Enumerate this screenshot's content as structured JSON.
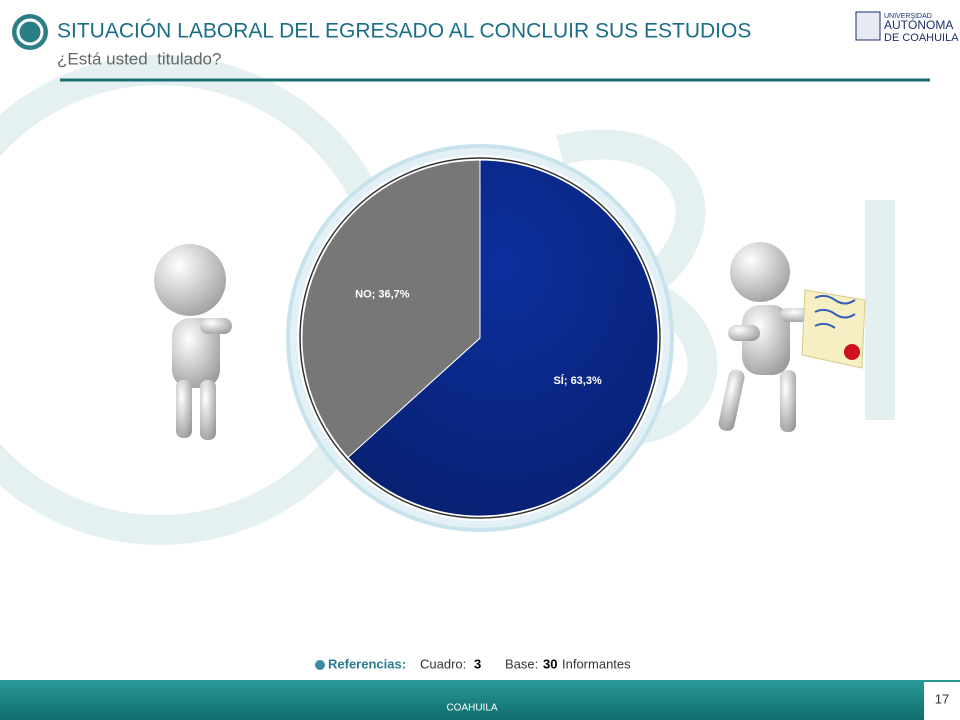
{
  "chart_data": {
    "type": "pie",
    "title": "SITUACIÓN LABORAL DEL EGRESADO AL CONCLUIR SUS ESTUDIOS",
    "subtitle": "¿Está usted  titulado?",
    "categories": [
      "SÍ",
      "NO"
    ],
    "values": [
      63.3,
      36.7
    ],
    "value_labels": [
      "SÍ; 63,3%",
      "NO; 36,7%"
    ],
    "colors": [
      "#0b2a8c",
      "#777777"
    ]
  },
  "slide": {
    "logo": [
      "UNIVERSIDAD",
      "AUTÓNOMA",
      "DE COAHUILA"
    ],
    "references": {
      "label": "Referencias:",
      "table_label": "Cuadro:",
      "table_value": "3",
      "base_label": "Base:",
      "base_value": "30",
      "base_unit": "Informantes"
    },
    "footer": "COAHUILA",
    "page_number": "17"
  }
}
